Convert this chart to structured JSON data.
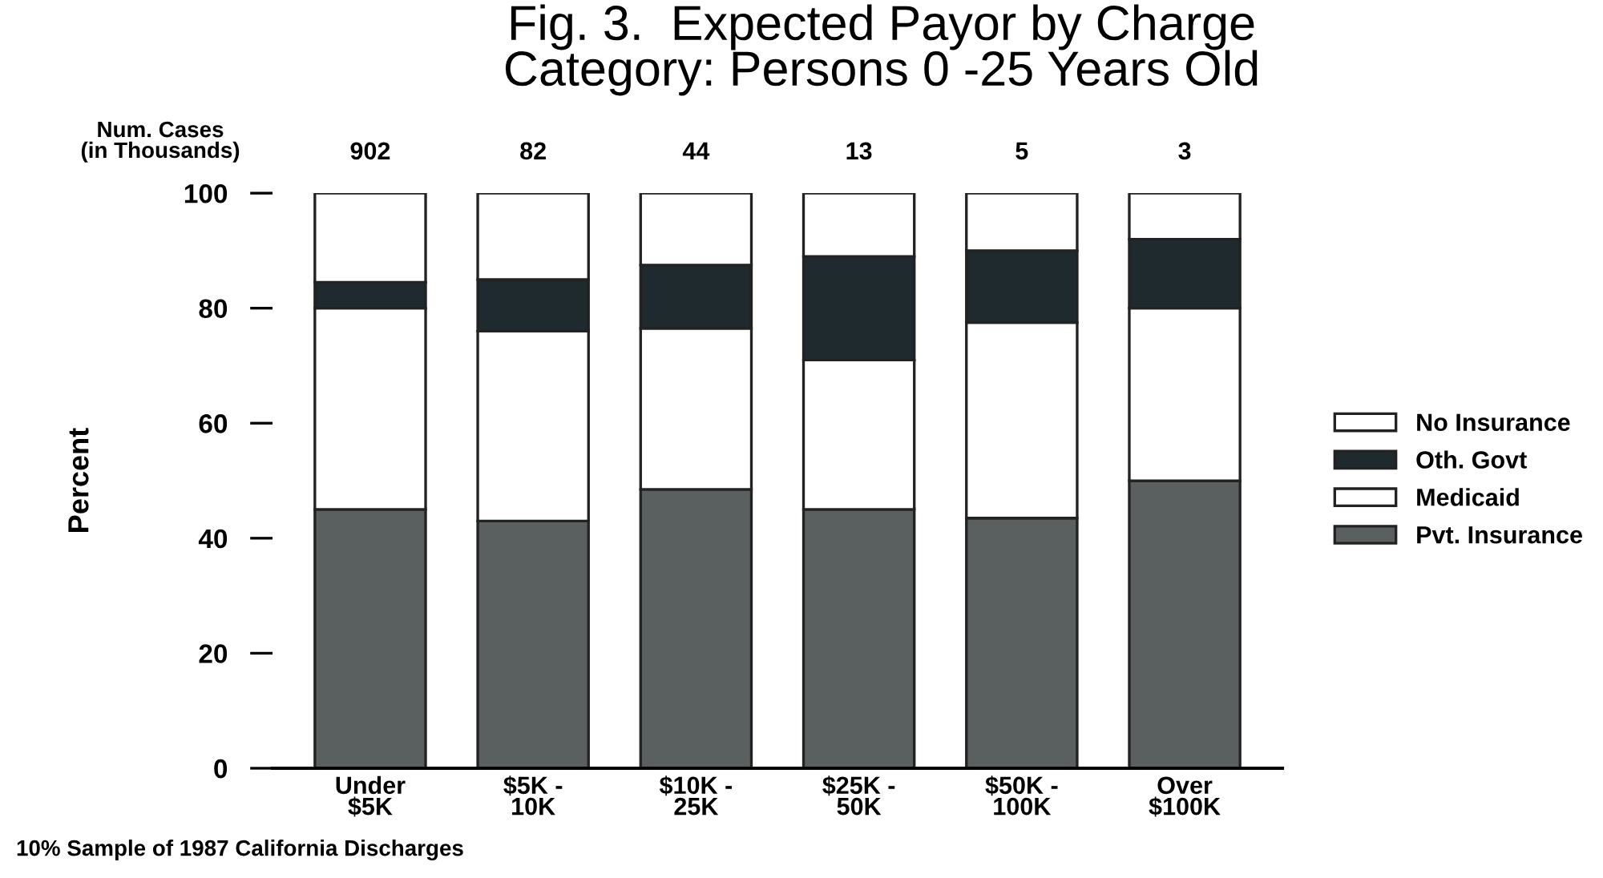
{
  "chart_data": {
    "type": "bar",
    "stacked": true,
    "title": "Fig. 3.  Expected Payor by Charge\nCategory: Persons 0 -25 Years Old",
    "ylabel": "Percent",
    "categories": [
      "Under\n$5K",
      "$5K -\n10K",
      "$10K -\n25K",
      "$25K -\n50K",
      "$50K -\n100K",
      "Over\n$100K"
    ],
    "series": [
      {
        "name": "Pvt. Insurance",
        "color": "#5a6060",
        "values": [
          45,
          43,
          48.5,
          45,
          43.5,
          50
        ]
      },
      {
        "name": "Medicaid",
        "color": "#ffffff",
        "values": [
          35,
          33,
          28,
          26,
          34,
          30
        ]
      },
      {
        "name": "Oth. Govt",
        "color": "#1e2a2e",
        "values": [
          4.5,
          9,
          11,
          18,
          12.5,
          12
        ]
      },
      {
        "name": "No Insurance",
        "color": "#ffffff",
        "values": [
          15.5,
          15,
          12.5,
          11,
          10,
          8
        ]
      }
    ],
    "ylim": [
      0,
      100
    ],
    "yticks": [
      0,
      20,
      40,
      60,
      80,
      100
    ],
    "grid": false,
    "legend": "right",
    "annotations": [
      "Num. Cases\n(in Thousands)",
      "902",
      "82",
      "44",
      "13",
      "5",
      "3",
      "10% Sample of 1987 California Discharges"
    ]
  }
}
